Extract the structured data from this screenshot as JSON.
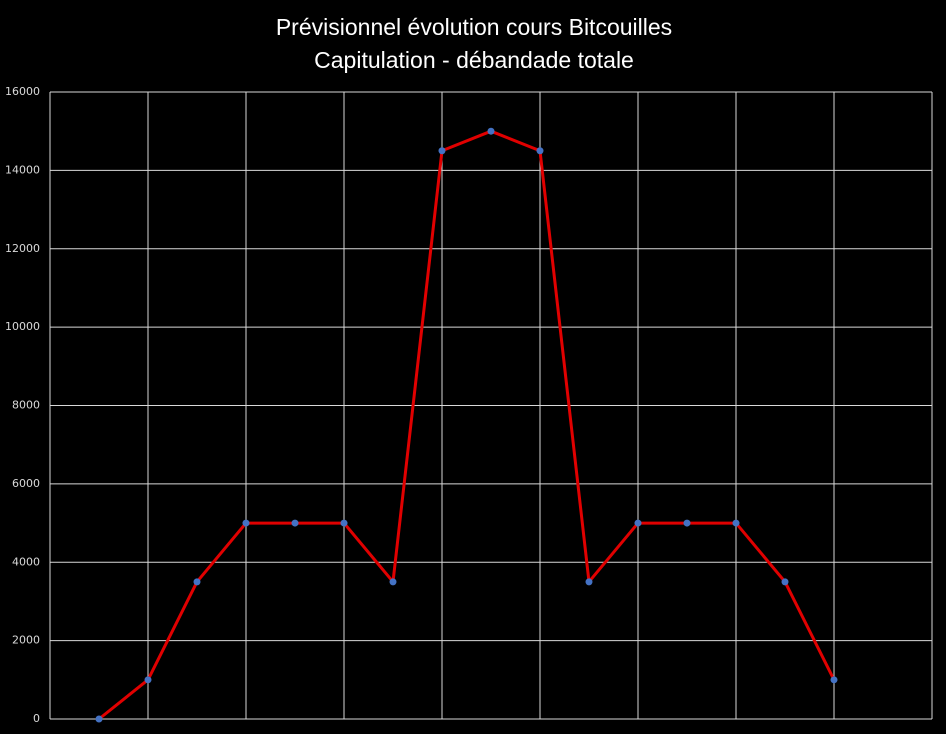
{
  "chart_data": {
    "type": "line",
    "title": [
      "Prévisionnel évolution cours Bitcouilles",
      "Capitulation - débandade totale"
    ],
    "x": [
      1,
      2,
      3,
      4,
      5,
      6,
      7,
      8,
      9,
      10,
      11,
      12,
      13,
      14,
      15,
      16
    ],
    "series": [
      {
        "color": "#e00000",
        "marker_color": "#4472c4",
        "values": [
          0,
          1000,
          3500,
          5000,
          5000,
          5000,
          3500,
          14500,
          15000,
          14500,
          3500,
          5000,
          5000,
          5000,
          3500,
          1000
        ]
      }
    ],
    "xlim": [
      0,
      18
    ],
    "xticks": [
      0,
      2,
      4,
      6,
      8,
      10,
      12,
      14,
      16,
      18
    ],
    "ylim": [
      0,
      16000
    ],
    "yticks": [
      0,
      2000,
      4000,
      6000,
      8000,
      10000,
      12000,
      14000,
      16000
    ],
    "grid": true
  }
}
